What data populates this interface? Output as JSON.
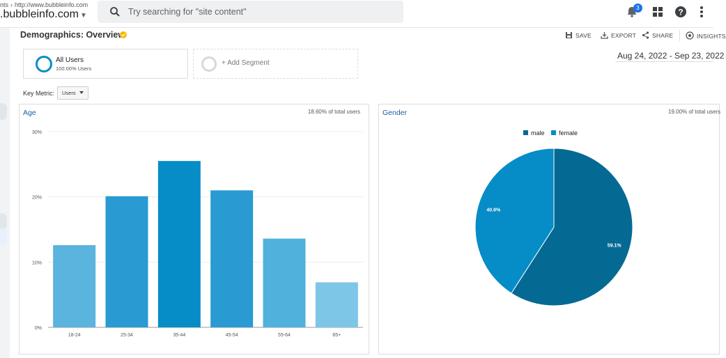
{
  "topbar": {
    "breadcrumb_prefix": "nts",
    "breadcrumb_url": "http://www.bubbleinfo.com",
    "property_name": ".bubbleinfo.com",
    "search_placeholder": "Try searching for \"site content\"",
    "notification_count": "3"
  },
  "header": {
    "title": "Demographics: Overview",
    "actions": {
      "save": "SAVE",
      "export": "EXPORT",
      "share": "SHARE",
      "insights": "INSIGHTS"
    }
  },
  "segments": {
    "active": {
      "name": "All Users",
      "subtitle": "100.00% Users"
    },
    "add_label": "+ Add Segment"
  },
  "date_range": "Aug 24, 2022 - Sep 23, 2022",
  "key_metric": {
    "label": "Key Metric:",
    "value": "Users"
  },
  "age_card": {
    "title": "Age",
    "note": "18.60% of total users"
  },
  "gender_card": {
    "title": "Gender",
    "note": "19.00% of total users"
  },
  "colors": {
    "accent": "#058dc7",
    "male": "#056a93",
    "female": "#068cc6"
  },
  "chart_data": [
    {
      "type": "bar",
      "title": "Age",
      "categories": [
        "18-24",
        "25-34",
        "35-44",
        "45-54",
        "55-64",
        "65+"
      ],
      "values": [
        12.6,
        20.1,
        25.5,
        21.0,
        13.6,
        6.9
      ],
      "y_ticks": [
        "0%",
        "10%",
        "20%",
        "30%"
      ],
      "ylim": [
        0,
        30
      ],
      "bar_colors": [
        "#5ab4dd",
        "#2a9ad2",
        "#068dc7",
        "#2a9ad2",
        "#50b1dc",
        "#7ec6e7"
      ],
      "grid": true
    },
    {
      "type": "pie",
      "title": "Gender",
      "labels": [
        "male",
        "female"
      ],
      "values": [
        59.1,
        40.9
      ],
      "data_labels": [
        "59.1%",
        "40.9%"
      ],
      "colors": [
        "#056a93",
        "#068cc6"
      ],
      "legend": "top"
    }
  ]
}
